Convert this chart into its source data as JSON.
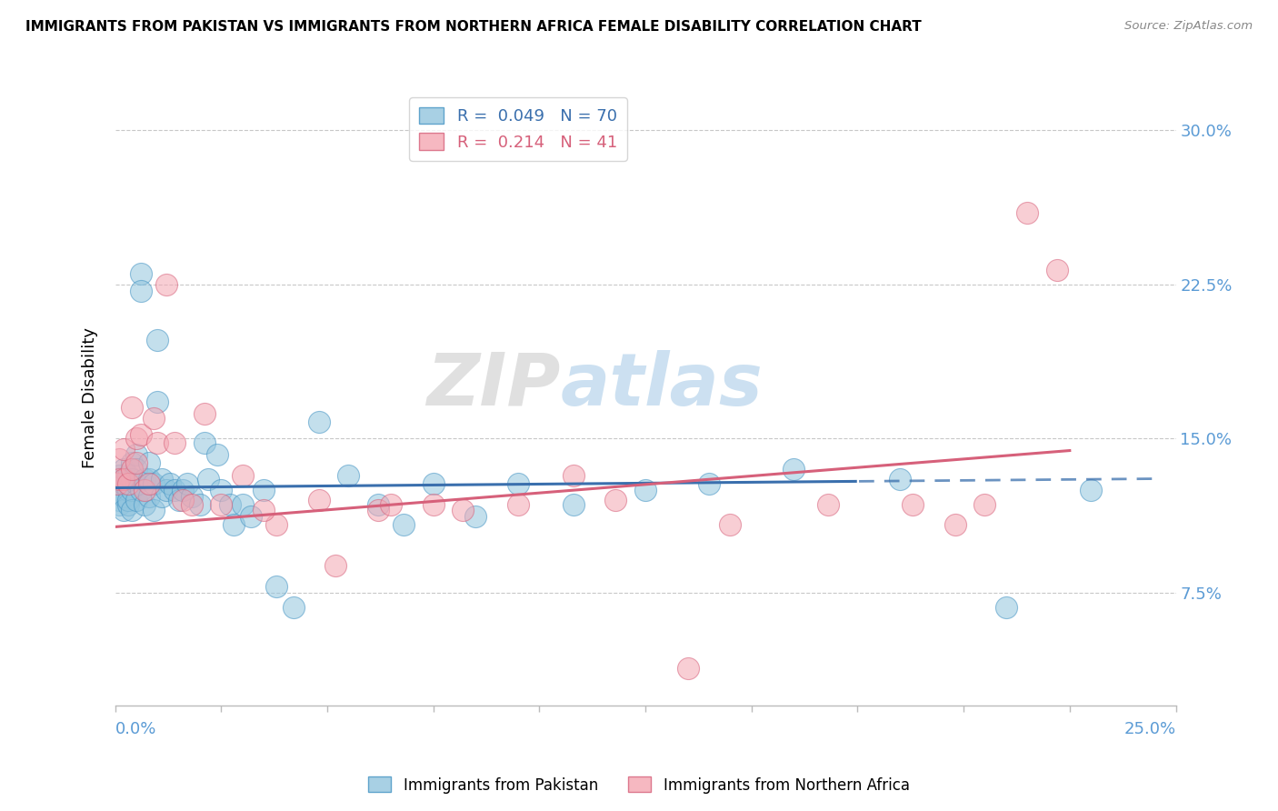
{
  "title": "IMMIGRANTS FROM PAKISTAN VS IMMIGRANTS FROM NORTHERN AFRICA FEMALE DISABILITY CORRELATION CHART",
  "source": "Source: ZipAtlas.com",
  "ylabel": "Female Disability",
  "xlim": [
    0.0,
    0.25
  ],
  "ylim": [
    0.02,
    0.32
  ],
  "R_pakistan": 0.049,
  "N_pakistan": 70,
  "R_northern_africa": 0.214,
  "N_northern_africa": 41,
  "color_pakistan": "#92c5de",
  "color_pakistan_edge": "#4393c3",
  "color_pakistan_line": "#3a6fad",
  "color_northern_africa": "#f4a6b2",
  "color_northern_africa_edge": "#d6607a",
  "color_northern_africa_line": "#d6607a",
  "pakistan_x": [
    0.0005,
    0.001,
    0.001,
    0.001,
    0.001,
    0.002,
    0.002,
    0.002,
    0.002,
    0.002,
    0.003,
    0.003,
    0.003,
    0.003,
    0.003,
    0.004,
    0.004,
    0.004,
    0.004,
    0.005,
    0.005,
    0.005,
    0.005,
    0.006,
    0.006,
    0.006,
    0.007,
    0.007,
    0.008,
    0.008,
    0.008,
    0.009,
    0.009,
    0.01,
    0.01,
    0.011,
    0.011,
    0.012,
    0.013,
    0.014,
    0.015,
    0.016,
    0.017,
    0.018,
    0.02,
    0.021,
    0.022,
    0.024,
    0.025,
    0.027,
    0.028,
    0.03,
    0.032,
    0.035,
    0.038,
    0.042,
    0.048,
    0.055,
    0.062,
    0.068,
    0.075,
    0.085,
    0.095,
    0.108,
    0.125,
    0.14,
    0.16,
    0.185,
    0.21,
    0.23
  ],
  "pakistan_y": [
    0.128,
    0.132,
    0.125,
    0.12,
    0.118,
    0.13,
    0.122,
    0.128,
    0.115,
    0.135,
    0.125,
    0.128,
    0.118,
    0.132,
    0.12,
    0.138,
    0.125,
    0.13,
    0.115,
    0.142,
    0.128,
    0.12,
    0.135,
    0.23,
    0.222,
    0.125,
    0.13,
    0.118,
    0.13,
    0.138,
    0.122,
    0.128,
    0.115,
    0.198,
    0.168,
    0.13,
    0.122,
    0.125,
    0.128,
    0.125,
    0.12,
    0.125,
    0.128,
    0.122,
    0.118,
    0.148,
    0.13,
    0.142,
    0.125,
    0.118,
    0.108,
    0.118,
    0.112,
    0.125,
    0.078,
    0.068,
    0.158,
    0.132,
    0.118,
    0.108,
    0.128,
    0.112,
    0.128,
    0.118,
    0.125,
    0.128,
    0.135,
    0.13,
    0.068,
    0.125
  ],
  "northern_africa_x": [
    0.0005,
    0.001,
    0.001,
    0.002,
    0.002,
    0.003,
    0.004,
    0.004,
    0.005,
    0.005,
    0.006,
    0.007,
    0.008,
    0.009,
    0.01,
    0.012,
    0.014,
    0.016,
    0.018,
    0.021,
    0.025,
    0.03,
    0.038,
    0.048,
    0.062,
    0.075,
    0.095,
    0.118,
    0.145,
    0.168,
    0.188,
    0.198,
    0.205,
    0.215,
    0.222,
    0.035,
    0.052,
    0.065,
    0.082,
    0.108,
    0.135
  ],
  "northern_africa_y": [
    0.128,
    0.14,
    0.13,
    0.145,
    0.13,
    0.128,
    0.135,
    0.165,
    0.138,
    0.15,
    0.152,
    0.125,
    0.128,
    0.16,
    0.148,
    0.225,
    0.148,
    0.12,
    0.118,
    0.162,
    0.118,
    0.132,
    0.108,
    0.12,
    0.115,
    0.118,
    0.118,
    0.12,
    0.108,
    0.118,
    0.118,
    0.108,
    0.118,
    0.26,
    0.232,
    0.115,
    0.088,
    0.118,
    0.115,
    0.132,
    0.038
  ],
  "watermark_zip": "ZIP",
  "watermark_atlas": "atlas",
  "background_color": "#ffffff",
  "grid_color": "#c8c8c8",
  "tick_color": "#5b9bd5",
  "line_solid_end_pk": 0.175,
  "line_start_pk": 0.0,
  "line_end_pk": 0.245,
  "line_start_na": 0.0,
  "line_end_na": 0.225,
  "pk_slope": 0.018,
  "pk_intercept": 0.126,
  "na_slope": 0.165,
  "na_intercept": 0.107
}
